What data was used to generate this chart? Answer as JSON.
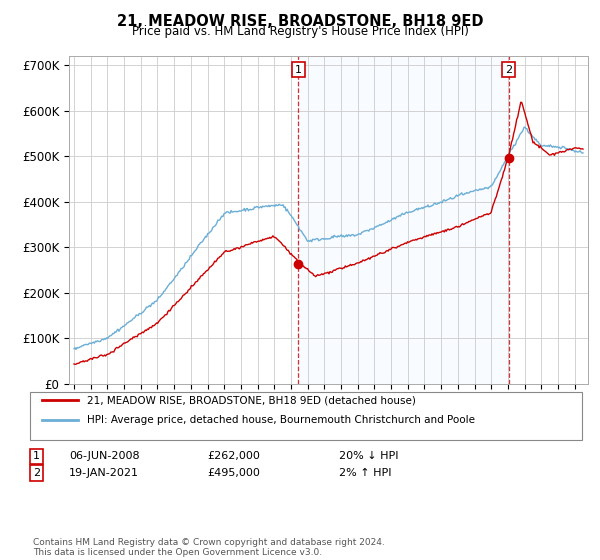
{
  "title": "21, MEADOW RISE, BROADSTONE, BH18 9ED",
  "subtitle": "Price paid vs. HM Land Registry's House Price Index (HPI)",
  "ylabel_ticks": [
    "£0",
    "£100K",
    "£200K",
    "£300K",
    "£400K",
    "£500K",
    "£600K",
    "£700K"
  ],
  "ytick_values": [
    0,
    100000,
    200000,
    300000,
    400000,
    500000,
    600000,
    700000
  ],
  "ylim": [
    0,
    720000
  ],
  "xlim_start": 1994.7,
  "xlim_end": 2025.8,
  "legend_line1": "21, MEADOW RISE, BROADSTONE, BH18 9ED (detached house)",
  "legend_line2": "HPI: Average price, detached house, Bournemouth Christchurch and Poole",
  "sale1_date": "06-JUN-2008",
  "sale1_price": "£262,000",
  "sale1_hpi": "20% ↓ HPI",
  "sale1_label": "1",
  "sale1_year": 2008.44,
  "sale1_price_val": 262000,
  "sale2_date": "19-JAN-2021",
  "sale2_price": "£495,000",
  "sale2_hpi": "2% ↑ HPI",
  "sale2_label": "2",
  "sale2_year": 2021.05,
  "sale2_price_val": 495000,
  "footer": "Contains HM Land Registry data © Crown copyright and database right 2024.\nThis data is licensed under the Open Government Licence v3.0.",
  "hpi_color": "#6baed6",
  "price_color": "#cc0000",
  "shade_color": "#ddeeff",
  "sale_dot_color": "#cc0000",
  "background_color": "#ffffff",
  "grid_color": "#cccccc"
}
